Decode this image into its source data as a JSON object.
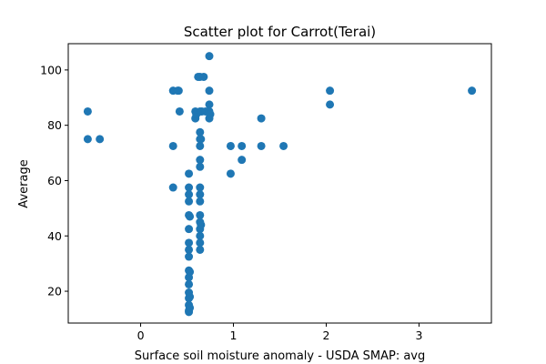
{
  "chart_data": {
    "type": "scatter",
    "title": "Scatter plot for Carrot(Terai)",
    "xlabel": "Surface soil moisture anomaly  - USDA SMAP: avg",
    "ylabel": "Average",
    "xlim": [
      -0.78,
      3.78
    ],
    "ylim": [
      8.5,
      109.5
    ],
    "xticks": [
      0,
      1,
      2,
      3
    ],
    "yticks": [
      20,
      40,
      60,
      80,
      100
    ],
    "grid": false,
    "marker_color": "#1f77b4",
    "points": [
      [
        -0.57,
        85
      ],
      [
        -0.57,
        75
      ],
      [
        -0.44,
        75
      ],
      [
        0.35,
        92.5
      ],
      [
        0.35,
        72.5
      ],
      [
        0.35,
        57.5
      ],
      [
        0.4,
        92.5
      ],
      [
        0.41,
        92.5
      ],
      [
        0.42,
        85
      ],
      [
        0.52,
        62.5
      ],
      [
        0.52,
        57.5
      ],
      [
        0.52,
        55
      ],
      [
        0.52,
        52.5
      ],
      [
        0.52,
        47.5
      ],
      [
        0.52,
        42.5
      ],
      [
        0.52,
        37.5
      ],
      [
        0.52,
        35
      ],
      [
        0.52,
        32.5
      ],
      [
        0.52,
        27.5
      ],
      [
        0.52,
        25
      ],
      [
        0.52,
        22.5
      ],
      [
        0.52,
        19.5
      ],
      [
        0.52,
        17.5
      ],
      [
        0.52,
        15
      ],
      [
        0.52,
        13
      ],
      [
        0.52,
        12.5
      ],
      [
        0.53,
        27
      ],
      [
        0.53,
        47
      ],
      [
        0.53,
        18
      ],
      [
        0.53,
        14
      ],
      [
        0.59,
        85
      ],
      [
        0.59,
        82.5
      ],
      [
        0.6,
        84
      ],
      [
        0.62,
        97.5
      ],
      [
        0.64,
        97.5
      ],
      [
        0.68,
        97.5
      ],
      [
        0.64,
        85
      ],
      [
        0.66,
        85
      ],
      [
        0.7,
        85
      ],
      [
        0.64,
        77.5
      ],
      [
        0.64,
        75
      ],
      [
        0.64,
        72.5
      ],
      [
        0.64,
        67.5
      ],
      [
        0.64,
        65
      ],
      [
        0.64,
        57.5
      ],
      [
        0.64,
        55
      ],
      [
        0.64,
        52.5
      ],
      [
        0.64,
        47.5
      ],
      [
        0.64,
        45
      ],
      [
        0.64,
        42.5
      ],
      [
        0.64,
        40
      ],
      [
        0.64,
        37.5
      ],
      [
        0.64,
        35
      ],
      [
        0.65,
        75
      ],
      [
        0.65,
        44
      ],
      [
        0.74,
        105
      ],
      [
        0.74,
        92.5
      ],
      [
        0.74,
        87.5
      ],
      [
        0.74,
        85
      ],
      [
        0.74,
        82.5
      ],
      [
        0.75,
        84
      ],
      [
        0.97,
        72.5
      ],
      [
        0.97,
        62.5
      ],
      [
        1.09,
        72.5
      ],
      [
        1.09,
        67.5
      ],
      [
        1.3,
        82.5
      ],
      [
        1.3,
        72.5
      ],
      [
        1.54,
        72.5
      ],
      [
        2.04,
        92.5
      ],
      [
        2.04,
        87.5
      ],
      [
        3.57,
        92.5
      ]
    ]
  }
}
